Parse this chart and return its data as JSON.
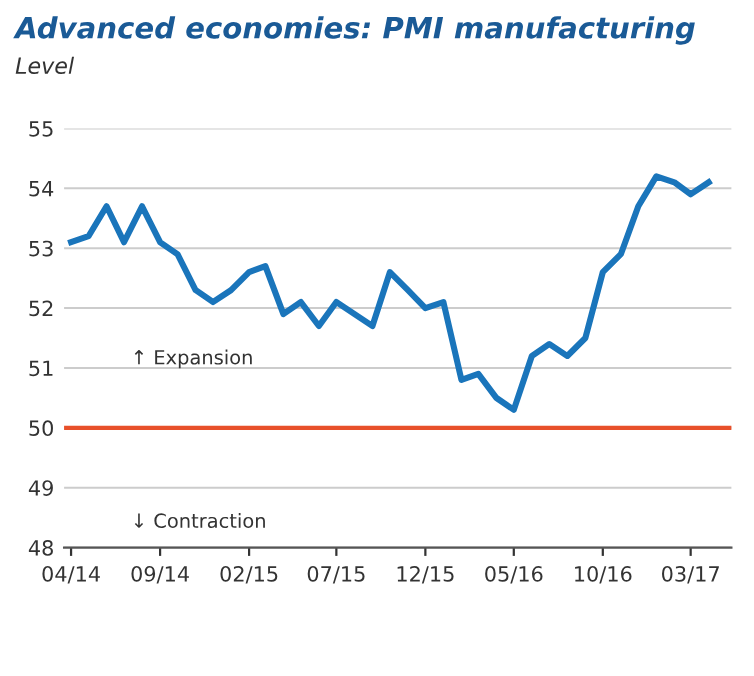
{
  "chart_data": {
    "type": "line",
    "title": "Advanced economies: PMI manufacturing",
    "subtitle": "Level",
    "x": [
      "2014-04",
      "2014-05",
      "2014-06",
      "2014-07",
      "2014-08",
      "2014-09",
      "2014-10",
      "2014-11",
      "2014-12",
      "2015-01",
      "2015-02",
      "2015-03",
      "2015-04",
      "2015-05",
      "2015-06",
      "2015-07",
      "2015-08",
      "2015-09",
      "2015-10",
      "2015-11",
      "2015-12",
      "2016-01",
      "2016-02",
      "2016-03",
      "2016-04",
      "2016-05",
      "2016-06",
      "2016-07",
      "2016-08",
      "2016-09",
      "2016-10",
      "2016-11",
      "2016-12",
      "2017-01",
      "2017-02",
      "2017-03",
      "2017-04"
    ],
    "series": [
      {
        "color": "#1a75bb",
        "values": [
          53.1,
          53.2,
          53.7,
          53.1,
          53.7,
          53.1,
          52.9,
          52.3,
          52.1,
          52.3,
          52.6,
          52.7,
          51.9,
          52.1,
          51.7,
          52.1,
          51.9,
          51.7,
          52.6,
          52.3,
          52.0,
          52.1,
          50.8,
          50.9,
          50.5,
          50.3,
          51.2,
          51.4,
          51.2,
          51.5,
          52.6,
          52.9,
          53.7,
          54.2,
          54.1,
          53.9,
          54.1
        ]
      }
    ],
    "xlim": [
      "2014-03-20",
      "2017-05-10"
    ],
    "xticks": [
      {
        "value": "2014-04",
        "label": "04/14"
      },
      {
        "value": "2014-09",
        "label": "09/14"
      },
      {
        "value": "2015-02",
        "label": "02/15"
      },
      {
        "value": "2015-07",
        "label": "07/15"
      },
      {
        "value": "2015-12",
        "label": "12/15"
      },
      {
        "value": "2016-05",
        "label": "05/16"
      },
      {
        "value": "2016-10",
        "label": "10/16"
      },
      {
        "value": "2017-03",
        "label": "03/17"
      }
    ],
    "ylim": [
      48,
      55
    ],
    "yticks": [
      48,
      49,
      50,
      51,
      52,
      53,
      54,
      55
    ],
    "grid": "y",
    "marker": "none",
    "line_style": "solid",
    "legend": false,
    "ref_lines": [
      {
        "axis": "y",
        "value": 50,
        "color": "#e8502a"
      }
    ],
    "annotations": [
      "↑ Expansion",
      "↓ Contraction"
    ]
  }
}
